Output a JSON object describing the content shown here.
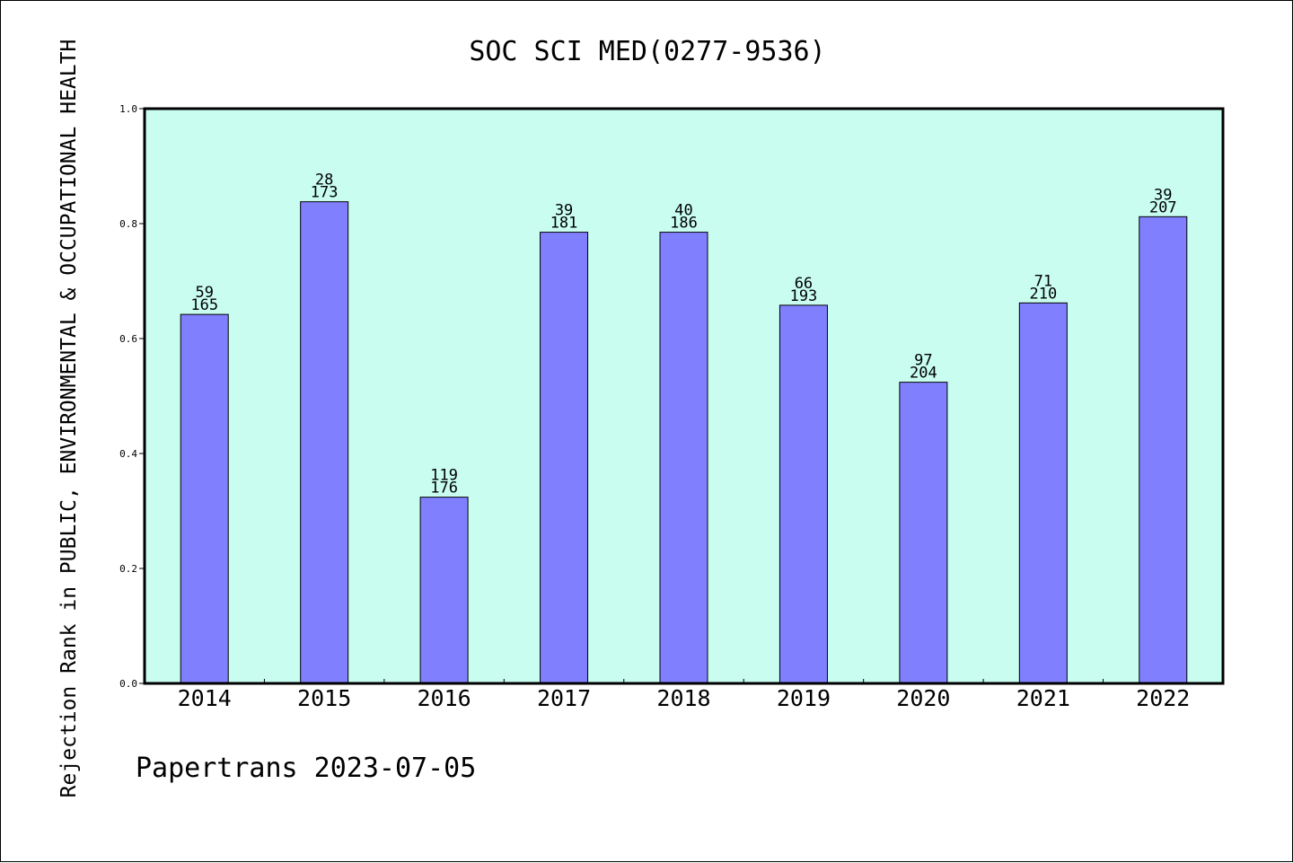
{
  "chart_data": {
    "type": "bar",
    "title": "SOC SCI MED(0277-9536)",
    "ylabel": "Rejection Rank in PUBLIC, ENVIRONMENTAL & OCCUPATIONAL HEALTH",
    "xlabel": "",
    "ylim": [
      0,
      1.0
    ],
    "yticks": [
      "0.0",
      "0.2",
      "0.4",
      "0.6",
      "0.8",
      "1.0"
    ],
    "categories": [
      "2014",
      "2015",
      "2016",
      "2017",
      "2018",
      "2019",
      "2020",
      "2021",
      "2022"
    ],
    "values": [
      0.642,
      0.838,
      0.324,
      0.785,
      0.785,
      0.658,
      0.524,
      0.662,
      0.812
    ],
    "rank": [
      "59",
      "28",
      "119",
      "39",
      "40",
      "66",
      "97",
      "71",
      "39"
    ],
    "total": [
      "165",
      "173",
      "176",
      "181",
      "186",
      "193",
      "204",
      "210",
      "207"
    ],
    "grid": false,
    "colors": {
      "plot_background": "#c8fdef",
      "bar_fill": "#8080ff",
      "bar_stroke": "#000000"
    }
  },
  "footer": "Papertrans 2023-07-05"
}
